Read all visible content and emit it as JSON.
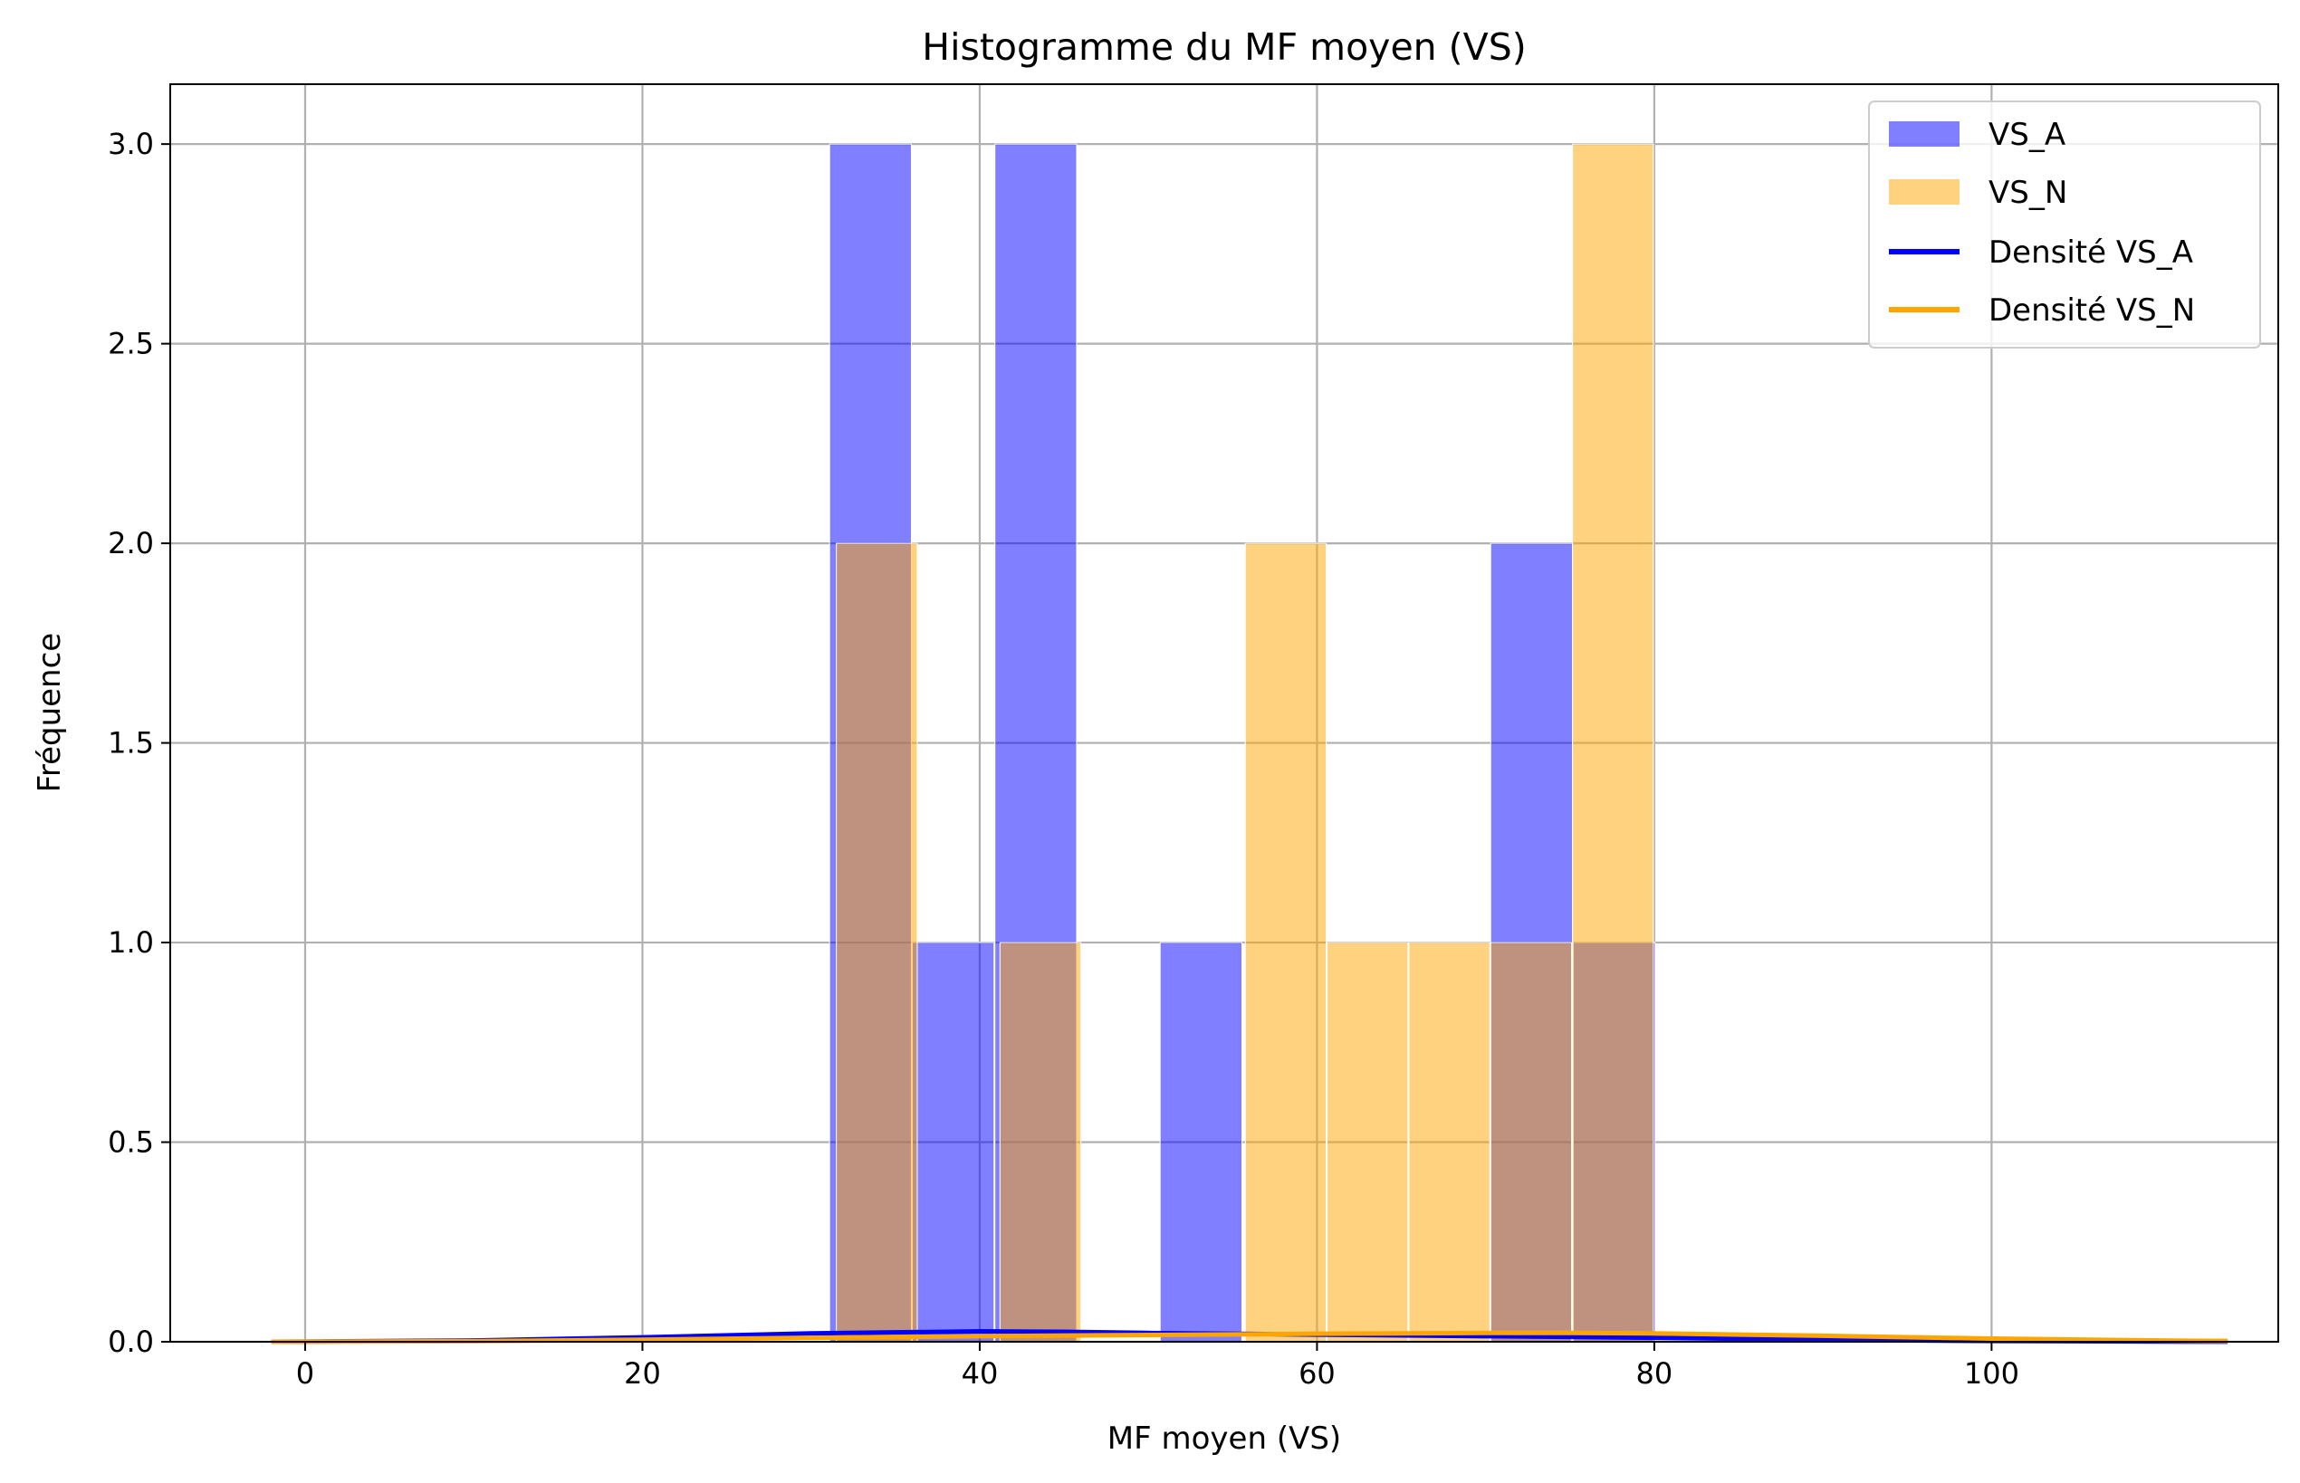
{
  "chart_data": {
    "type": "bar",
    "title": "Histogramme du MF moyen (VS)",
    "xlabel": "MF moyen (VS)",
    "ylabel": "Fréquence",
    "xlim": [
      -8,
      117
    ],
    "ylim": [
      0,
      3.15
    ],
    "xticks": [
      0,
      20,
      40,
      60,
      80,
      100
    ],
    "yticks": [
      0.0,
      0.5,
      1.0,
      1.5,
      2.0,
      2.5,
      3.0
    ],
    "xtick_labels": [
      "0",
      "20",
      "40",
      "60",
      "80",
      "100"
    ],
    "ytick_labels": [
      "0.0",
      "0.5",
      "1.0",
      "1.5",
      "2.0",
      "2.5",
      "3.0"
    ],
    "grid": true,
    "legend_position": "top-right",
    "histograms": [
      {
        "name": "VS_A",
        "color": "#0000ff",
        "alpha": 0.5,
        "bin_edges": [
          31.1,
          36.0,
          40.9,
          45.8,
          50.7,
          55.6,
          60.5,
          65.4,
          70.3,
          75.2,
          80.1
        ],
        "counts": [
          3,
          1,
          3,
          0,
          1,
          0,
          0,
          0,
          2,
          1
        ]
      },
      {
        "name": "VS_N",
        "color": "#ffa500",
        "alpha": 0.5,
        "bin_edges": [
          31.5,
          36.35,
          41.2,
          46.05,
          50.9,
          55.75,
          60.6,
          65.45,
          70.3,
          75.15,
          80.0
        ],
        "counts": [
          2,
          0,
          1,
          0,
          0,
          2,
          1,
          1,
          1,
          3
        ]
      }
    ],
    "series": [
      {
        "name": "Densité VS_A",
        "color": "#0000ff",
        "x": [
          -2,
          0,
          10,
          20,
          30,
          40,
          45,
          50,
          60,
          70,
          80,
          90,
          100,
          110,
          114
        ],
        "y": [
          0.0,
          0.0004,
          0.003,
          0.011,
          0.021,
          0.026,
          0.025,
          0.022,
          0.018,
          0.014,
          0.01,
          0.005,
          0.002,
          0.0005,
          0.0002
        ]
      },
      {
        "name": "Densité VS_N",
        "color": "#ffa500",
        "x": [
          -2,
          0,
          10,
          20,
          30,
          40,
          50,
          60,
          70,
          75,
          80,
          90,
          100,
          110,
          114
        ],
        "y": [
          0.0,
          0.0002,
          0.0015,
          0.005,
          0.01,
          0.014,
          0.017,
          0.02,
          0.022,
          0.022,
          0.021,
          0.015,
          0.008,
          0.003,
          0.002
        ]
      }
    ]
  }
}
